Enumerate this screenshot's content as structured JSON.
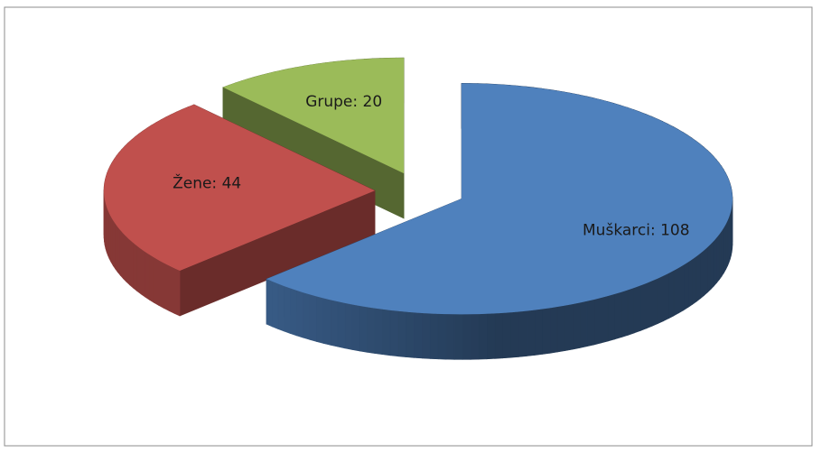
{
  "chart_data": {
    "type": "pie",
    "values": [
      108,
      44,
      20
    ],
    "value_labels": [
      "Muškarci: 108",
      "Žene: 44",
      "Grupe: 20"
    ],
    "colors": [
      "#4f81bd",
      "#c0504d",
      "#9bbb59"
    ]
  }
}
